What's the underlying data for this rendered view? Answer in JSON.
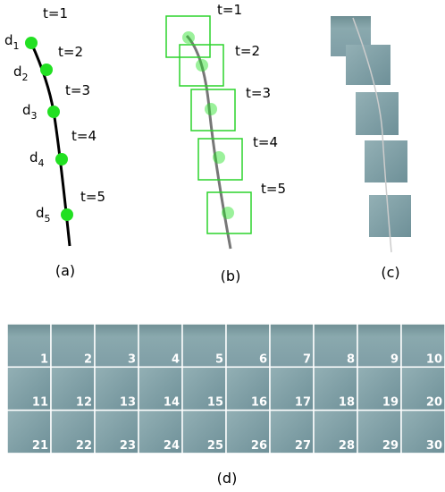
{
  "panels": {
    "a": {
      "caption": "(a)",
      "points": [
        {
          "d": "d",
          "sub": "1",
          "t": "t=1"
        },
        {
          "d": "d",
          "sub": "2",
          "t": "t=2"
        },
        {
          "d": "d",
          "sub": "3",
          "t": "t=3"
        },
        {
          "d": "d",
          "sub": "4",
          "t": "t=4"
        },
        {
          "d": "d",
          "sub": "5",
          "t": "t=5"
        }
      ]
    },
    "b": {
      "caption": "(b)",
      "labels": [
        "t=1",
        "t=2",
        "t=3",
        "t=4",
        "t=5"
      ]
    },
    "c": {
      "caption": "(c)"
    },
    "d": {
      "caption": "(d)",
      "tiles": [
        "1",
        "2",
        "3",
        "4",
        "5",
        "6",
        "7",
        "8",
        "9",
        "10",
        "11",
        "12",
        "13",
        "14",
        "15",
        "16",
        "17",
        "18",
        "19",
        "20",
        "21",
        "22",
        "23",
        "24",
        "25",
        "26",
        "27",
        "28",
        "29",
        "30"
      ]
    }
  }
}
